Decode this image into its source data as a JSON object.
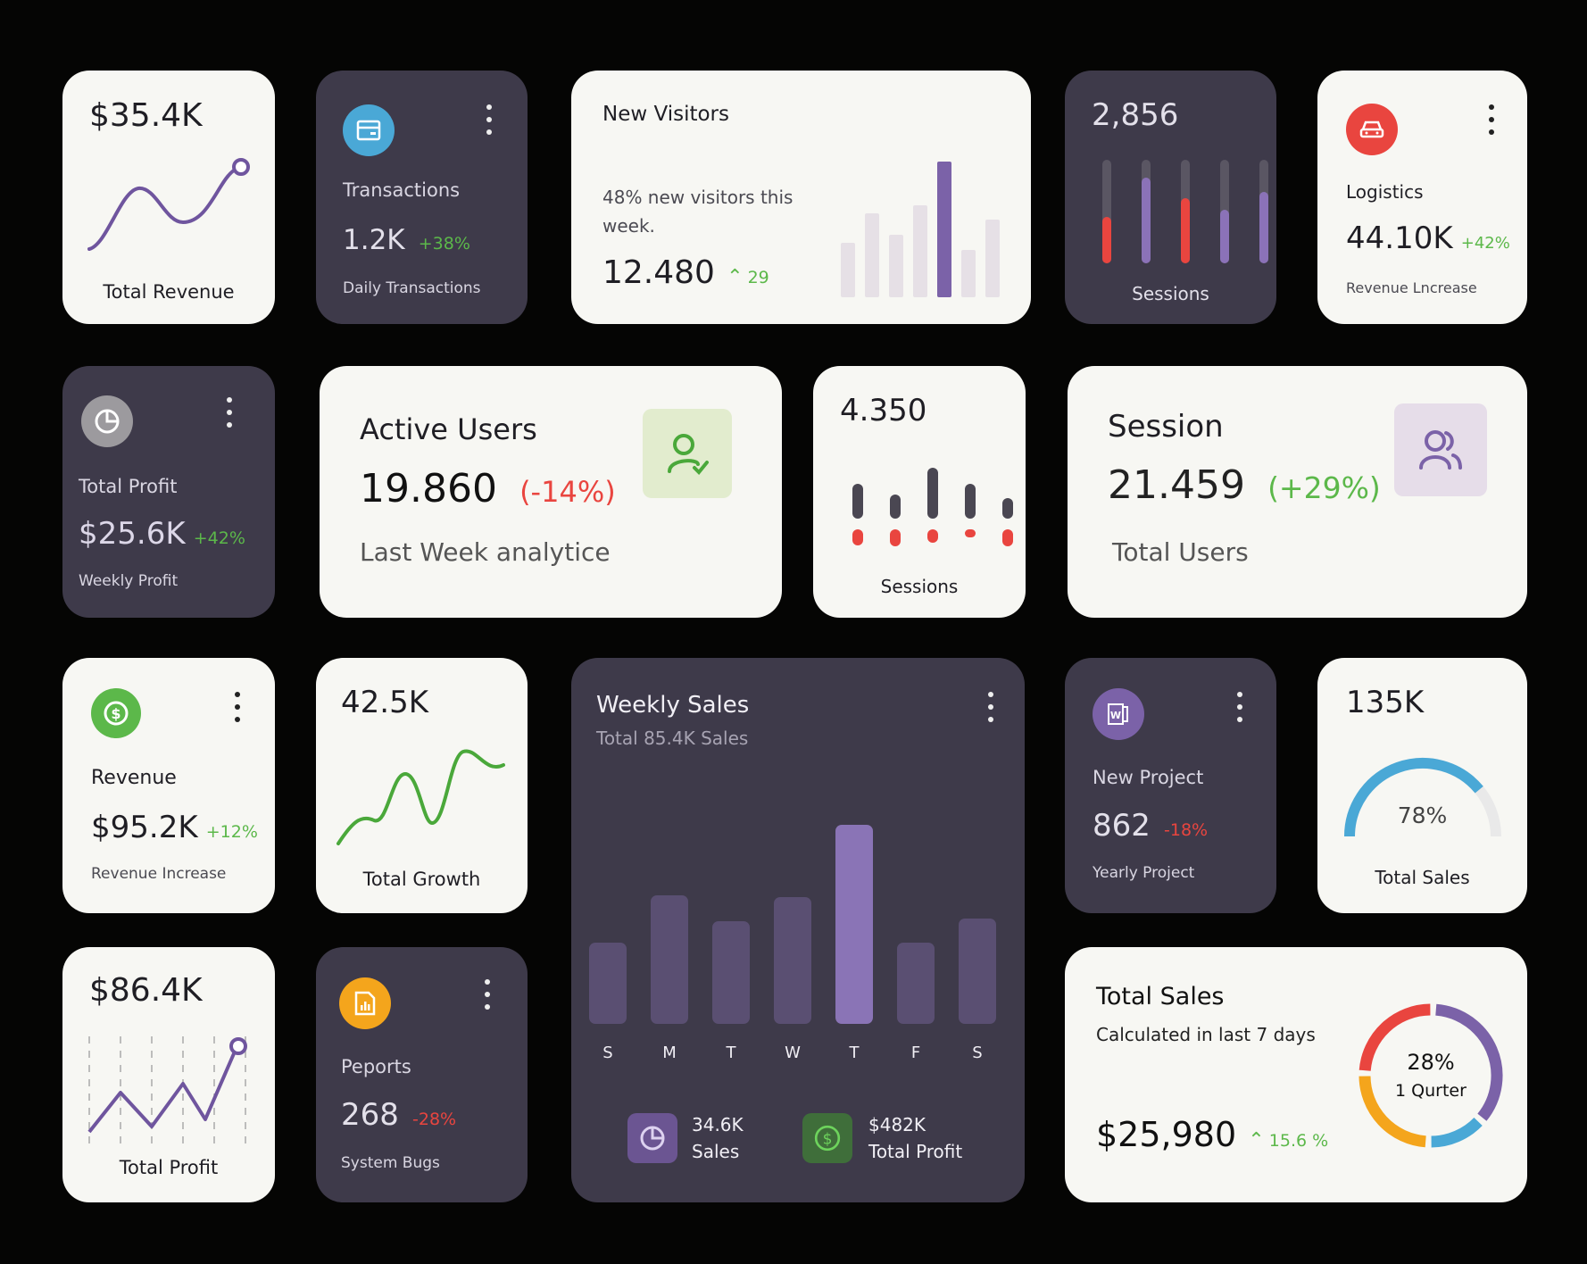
{
  "colors": {
    "background": "#050504",
    "card_light": "#f7f7f3",
    "card_dark": "#3e3a4a",
    "purple": "#7b62a8",
    "red": "#e9453f",
    "green": "#5cb84a",
    "blue": "#4aa8d6",
    "orange": "#f4a51c"
  },
  "total_revenue_card": {
    "value": "$35.4K",
    "label": "Total Revenue",
    "icon": "line-chart"
  },
  "transactions_card": {
    "icon": "credit-card-icon",
    "title": "Transactions",
    "value": "1.2K",
    "change": "+38%",
    "subtitle": "Daily Transactions"
  },
  "new_visitors_card": {
    "title": "New Visitors",
    "description": "48% new visitors this week.",
    "value": "12.480",
    "change": "29",
    "bars": [
      0.4,
      0.62,
      0.46,
      0.68,
      1.0,
      0.35,
      0.57
    ],
    "highlight_index": 4
  },
  "sessions_dark_card": {
    "value": "2,856",
    "label": "Sessions",
    "bars": [
      {
        "level": 0.45,
        "color": "red"
      },
      {
        "level": 0.83,
        "color": "purple"
      },
      {
        "level": 0.63,
        "color": "red"
      },
      {
        "level": 0.52,
        "color": "purple"
      },
      {
        "level": 0.69,
        "color": "purple"
      }
    ]
  },
  "logistics_card": {
    "icon": "car-icon",
    "title": "Logistics",
    "value": "44.10K",
    "change": "+42%",
    "subtitle": "Revenue Lncrease"
  },
  "total_profit_dark_card": {
    "icon": "pie-chart-icon",
    "title": "Total Profit",
    "value": "$25.6K",
    "change": "+42%",
    "subtitle": "Weekly Profit"
  },
  "active_users_card": {
    "title": "Active Users",
    "value": "19.860",
    "change": "(-14%)",
    "subtitle": "Last Week analytice",
    "icon": "user-check-icon"
  },
  "sessions_light_card": {
    "value": "4.350",
    "label": "Sessions",
    "bars": [
      {
        "top": 0.55,
        "bottom": 0.45
      },
      {
        "top": 0.38,
        "bottom": 0.48
      },
      {
        "top": 0.82,
        "bottom": 0.38
      },
      {
        "top": 0.55,
        "bottom": 0.22
      },
      {
        "top": 0.33,
        "bottom": 0.48
      }
    ]
  },
  "session_card": {
    "title": "Session",
    "value": "21.459",
    "change": "(+29%)",
    "subtitle": "Total Users",
    "icon": "users-icon"
  },
  "revenue_card": {
    "icon": "dollar-icon",
    "title": "Revenue",
    "value": "$95.2K",
    "change": "+12%",
    "subtitle": "Revenue Increase"
  },
  "total_growth_card": {
    "value": "42.5K",
    "label": "Total Growth"
  },
  "weekly_sales_card": {
    "title": "Weekly Sales",
    "subtitle": "Total 85.4K Sales",
    "footer": [
      {
        "icon": "pie-chart-icon",
        "value": "34.6K",
        "label": "Sales"
      },
      {
        "icon": "dollar-icon",
        "value": "$482K",
        "label": "Total Profit"
      }
    ]
  },
  "new_project_card": {
    "icon": "word-doc-icon",
    "title": "New Project",
    "value": "862",
    "change": "-18%",
    "subtitle": "Yearly Project"
  },
  "total_sales_gauge_card": {
    "value": "135K",
    "percent_label": "78%",
    "percent": 78,
    "label": "Total Sales"
  },
  "total_profit_light_card": {
    "value": "$86.4K",
    "label": "Total Profit"
  },
  "reports_card": {
    "icon": "report-icon",
    "title": "Peports",
    "value": "268",
    "change": "-28%",
    "subtitle": "System Bugs"
  },
  "total_sales_card": {
    "title": "Total Sales",
    "subtitle": "Calculated in last 7 days",
    "value": "$25,980",
    "change": "15.6 %",
    "donut_center_value": "28%",
    "donut_center_label": "1 Qurter",
    "donut_segments": [
      {
        "name": "purple",
        "share": 0.36,
        "color": "#7b62a8"
      },
      {
        "name": "blue",
        "share": 0.14,
        "color": "#4aa8d6"
      },
      {
        "name": "orange",
        "share": 0.25,
        "color": "#f4a51c"
      },
      {
        "name": "red",
        "share": 0.25,
        "color": "#e9453f"
      }
    ]
  },
  "chart_data": [
    {
      "type": "bar",
      "title": "Weekly Sales",
      "subtitle": "Total 85.4K Sales",
      "categories": [
        "S",
        "M",
        "T",
        "W",
        "T",
        "F",
        "S"
      ],
      "values": [
        38,
        60,
        48,
        59,
        93,
        38,
        49
      ],
      "highlight_index": 4,
      "xlabel": "",
      "ylabel": "",
      "ylim": [
        0,
        100
      ],
      "grid": false
    }
  ]
}
